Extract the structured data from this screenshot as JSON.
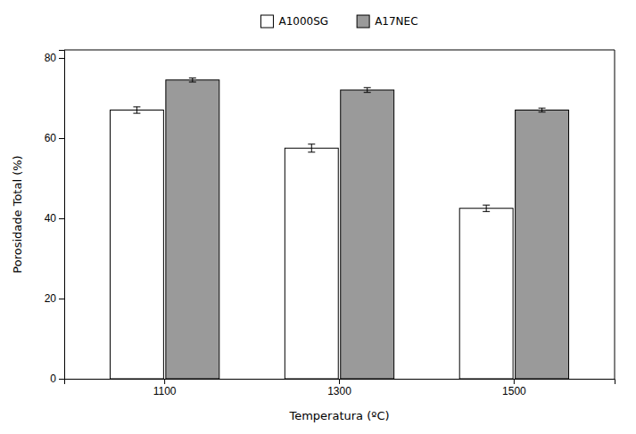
{
  "chart_data": {
    "type": "bar",
    "categories": [
      "1100",
      "1300",
      "1500"
    ],
    "series": [
      {
        "name": "A1000SG",
        "color": "#ffffff",
        "values": [
          67.0,
          57.5,
          42.5
        ],
        "errors": [
          0.8,
          1.0,
          0.8
        ]
      },
      {
        "name": "A17NEC",
        "color": "#9a9a9a",
        "values": [
          74.5,
          72.0,
          67.0
        ],
        "errors": [
          0.5,
          0.6,
          0.5
        ]
      }
    ],
    "xlabel": "Temperatura (ºC)",
    "ylabel": "Porosidade Total (%)",
    "ylim": [
      0,
      82
    ],
    "yticks": [
      0,
      20,
      40,
      60,
      80
    ],
    "legend": "top",
    "grid": false
  }
}
